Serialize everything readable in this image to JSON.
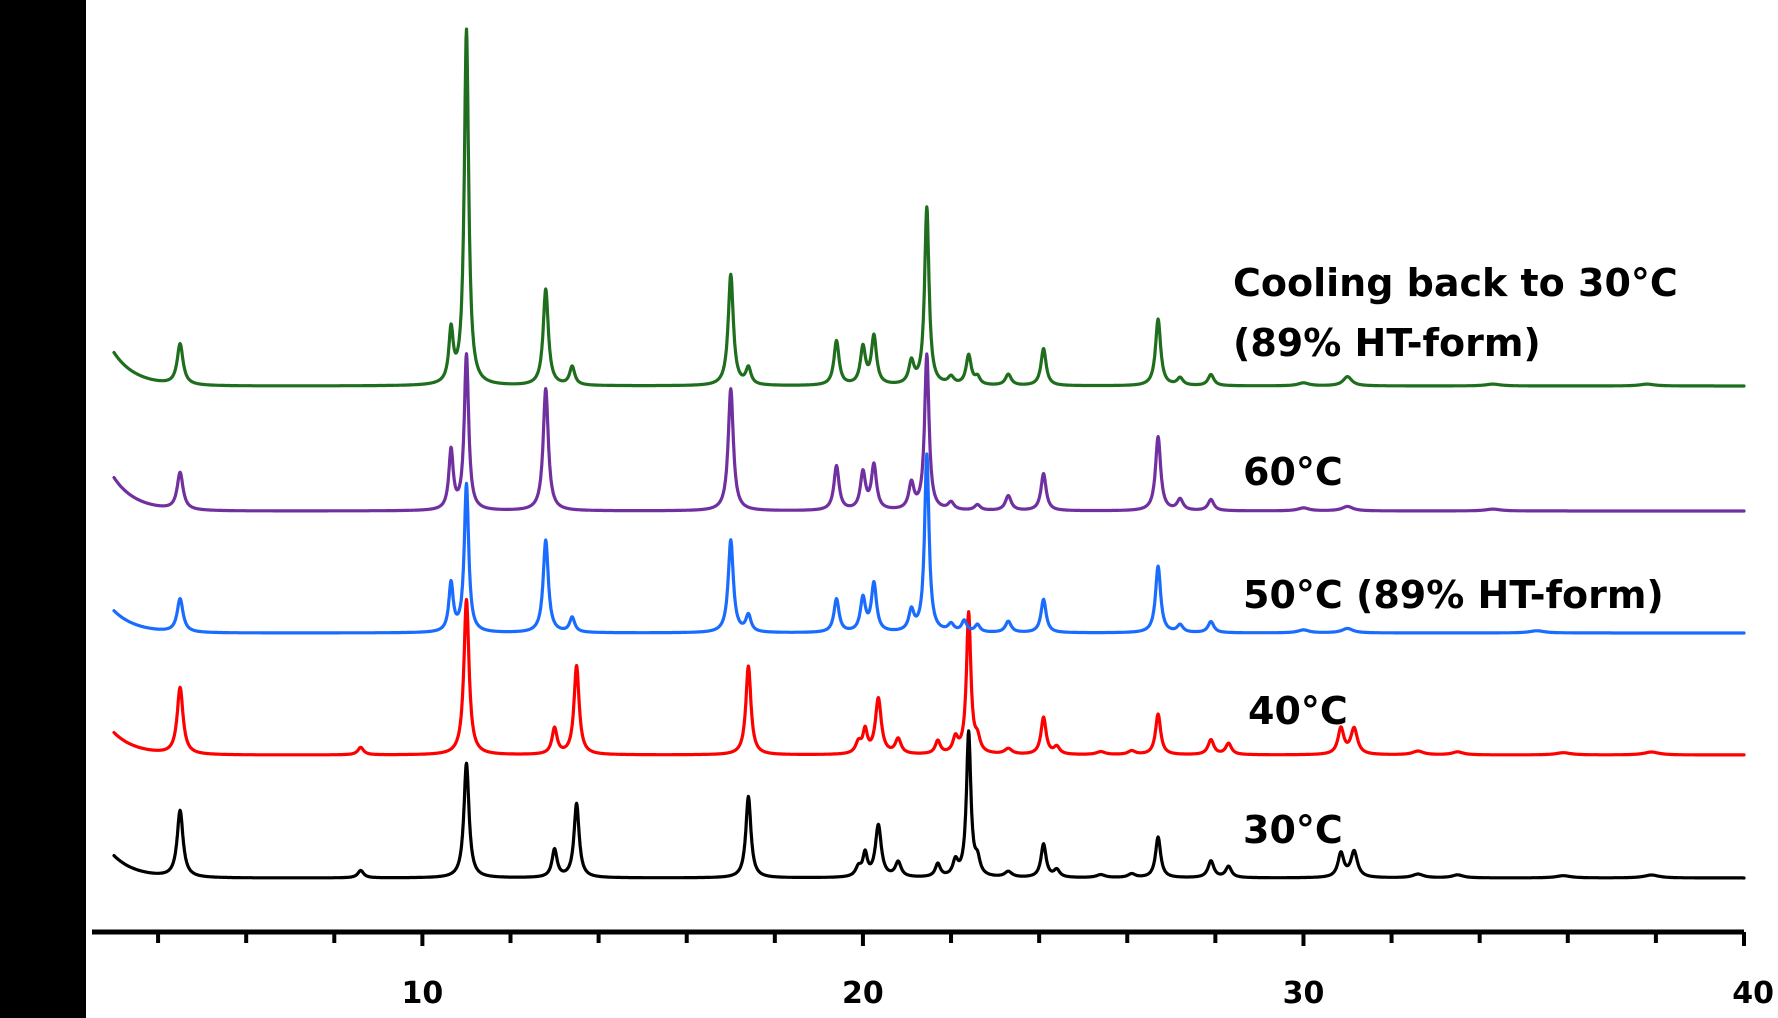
{
  "chart_data": {
    "type": "line",
    "title": "",
    "xlabel": "",
    "ylabel": "",
    "xlim": [
      2.5,
      40
    ],
    "x_ticks": [
      10,
      20,
      30,
      40
    ],
    "x_tick_labels": [
      "10",
      "20",
      "30",
      "40"
    ],
    "x_minor_step": 2,
    "y_axis": "line only, no tick labels",
    "grid": false,
    "legend": "none (series labelled directly to the right of each trace)",
    "series": [
      {
        "name": "30°C",
        "color": "#000000",
        "baseline": 0,
        "x_start": 3,
        "x_end": 40,
        "start_rise": 0.6,
        "peaks": [
          [
            4.5,
            1.8,
            0.08
          ],
          [
            8.6,
            0.2,
            0.08
          ],
          [
            11.0,
            3.1,
            0.07
          ],
          [
            13.0,
            0.75,
            0.07
          ],
          [
            13.5,
            2.0,
            0.07
          ],
          [
            17.4,
            2.2,
            0.07
          ],
          [
            19.9,
            0.25,
            0.08
          ],
          [
            20.05,
            0.6,
            0.06
          ],
          [
            20.35,
            1.4,
            0.08
          ],
          [
            20.8,
            0.4,
            0.08
          ],
          [
            21.7,
            0.35,
            0.07
          ],
          [
            22.1,
            0.4,
            0.07
          ],
          [
            22.4,
            3.9,
            0.06
          ],
          [
            22.6,
            0.4,
            0.07
          ],
          [
            23.3,
            0.15,
            0.1
          ],
          [
            24.1,
            0.9,
            0.07
          ],
          [
            24.4,
            0.2,
            0.08
          ],
          [
            25.4,
            0.08,
            0.12
          ],
          [
            26.1,
            0.1,
            0.1
          ],
          [
            26.7,
            1.1,
            0.07
          ],
          [
            27.9,
            0.45,
            0.08
          ],
          [
            28.3,
            0.3,
            0.08
          ],
          [
            30.85,
            0.65,
            0.08
          ],
          [
            31.15,
            0.7,
            0.09
          ],
          [
            32.6,
            0.1,
            0.15
          ],
          [
            33.5,
            0.08,
            0.15
          ],
          [
            35.9,
            0.06,
            0.2
          ],
          [
            37.9,
            0.08,
            0.2
          ]
        ]
      },
      {
        "name": "40°C",
        "color": "#ff0000",
        "baseline": 0,
        "x_start": 3,
        "x_end": 40,
        "start_rise": 0.6,
        "peaks": [
          [
            4.5,
            1.8,
            0.08
          ],
          [
            8.6,
            0.2,
            0.08
          ],
          [
            11.0,
            4.2,
            0.07
          ],
          [
            13.0,
            0.7,
            0.07
          ],
          [
            13.5,
            2.4,
            0.07
          ],
          [
            17.4,
            2.4,
            0.07
          ],
          [
            19.9,
            0.3,
            0.08
          ],
          [
            20.05,
            0.6,
            0.06
          ],
          [
            20.35,
            1.5,
            0.08
          ],
          [
            20.8,
            0.4,
            0.08
          ],
          [
            21.7,
            0.35,
            0.07
          ],
          [
            22.1,
            0.4,
            0.07
          ],
          [
            22.4,
            3.8,
            0.06
          ],
          [
            22.6,
            0.35,
            0.07
          ],
          [
            23.3,
            0.15,
            0.1
          ],
          [
            24.1,
            1.0,
            0.07
          ],
          [
            24.4,
            0.2,
            0.08
          ],
          [
            25.4,
            0.08,
            0.12
          ],
          [
            26.1,
            0.1,
            0.1
          ],
          [
            26.7,
            1.1,
            0.07
          ],
          [
            27.9,
            0.4,
            0.08
          ],
          [
            28.3,
            0.3,
            0.08
          ],
          [
            30.85,
            0.7,
            0.08
          ],
          [
            31.15,
            0.7,
            0.09
          ],
          [
            32.6,
            0.1,
            0.15
          ],
          [
            33.5,
            0.08,
            0.15
          ],
          [
            35.9,
            0.06,
            0.2
          ],
          [
            37.9,
            0.08,
            0.2
          ]
        ]
      },
      {
        "name": "50°C (89% HT-form)",
        "color": "#1a6cff",
        "baseline": 0,
        "x_start": 3,
        "x_end": 40,
        "start_rise": 0.6,
        "peaks": [
          [
            4.5,
            0.9,
            0.08
          ],
          [
            10.65,
            1.3,
            0.06
          ],
          [
            11.0,
            4.0,
            0.06
          ],
          [
            12.8,
            2.5,
            0.07
          ],
          [
            13.4,
            0.4,
            0.07
          ],
          [
            17.0,
            2.5,
            0.07
          ],
          [
            17.4,
            0.45,
            0.07
          ],
          [
            19.4,
            0.9,
            0.07
          ],
          [
            20.0,
            0.9,
            0.07
          ],
          [
            20.25,
            1.3,
            0.07
          ],
          [
            21.1,
            0.55,
            0.07
          ],
          [
            21.45,
            4.8,
            0.06
          ],
          [
            22.0,
            0.2,
            0.08
          ],
          [
            22.3,
            0.3,
            0.07
          ],
          [
            22.6,
            0.2,
            0.07
          ],
          [
            23.3,
            0.3,
            0.08
          ],
          [
            24.1,
            0.9,
            0.07
          ],
          [
            26.7,
            1.8,
            0.07
          ],
          [
            27.2,
            0.2,
            0.08
          ],
          [
            27.9,
            0.3,
            0.08
          ],
          [
            30.0,
            0.08,
            0.15
          ],
          [
            31.0,
            0.12,
            0.15
          ],
          [
            35.3,
            0.06,
            0.2
          ]
        ]
      },
      {
        "name": "60°C",
        "color": "#7030a0",
        "baseline": 0,
        "x_start": 3,
        "x_end": 40,
        "start_rise": 0.9,
        "peaks": [
          [
            4.5,
            1.0,
            0.08
          ],
          [
            10.65,
            1.6,
            0.06
          ],
          [
            11.0,
            4.2,
            0.06
          ],
          [
            12.8,
            3.3,
            0.07
          ],
          [
            17.0,
            3.3,
            0.07
          ],
          [
            19.4,
            1.2,
            0.07
          ],
          [
            20.0,
            1.0,
            0.07
          ],
          [
            20.25,
            1.2,
            0.07
          ],
          [
            21.1,
            0.7,
            0.07
          ],
          [
            21.45,
            4.2,
            0.06
          ],
          [
            22.0,
            0.2,
            0.08
          ],
          [
            22.6,
            0.15,
            0.08
          ],
          [
            23.3,
            0.4,
            0.08
          ],
          [
            24.1,
            1.0,
            0.07
          ],
          [
            26.7,
            2.0,
            0.07
          ],
          [
            27.2,
            0.3,
            0.08
          ],
          [
            27.9,
            0.3,
            0.08
          ],
          [
            30.0,
            0.08,
            0.15
          ],
          [
            31.0,
            0.12,
            0.15
          ],
          [
            34.3,
            0.05,
            0.2
          ]
        ]
      },
      {
        "name": "Cooling back to 30°C",
        "subtitle": "(89% HT-form)",
        "color": "#1e6e1e",
        "baseline": 0,
        "x_start": 3,
        "x_end": 40,
        "start_rise": 0.9,
        "peaks": [
          [
            4.5,
            1.1,
            0.08
          ],
          [
            10.65,
            1.4,
            0.06
          ],
          [
            11.0,
            9.6,
            0.06
          ],
          [
            12.8,
            2.6,
            0.07
          ],
          [
            13.4,
            0.5,
            0.07
          ],
          [
            17.0,
            3.0,
            0.07
          ],
          [
            17.4,
            0.45,
            0.07
          ],
          [
            19.4,
            1.2,
            0.07
          ],
          [
            20.0,
            1.0,
            0.07
          ],
          [
            20.25,
            1.3,
            0.07
          ],
          [
            21.1,
            0.6,
            0.07
          ],
          [
            21.45,
            4.8,
            0.06
          ],
          [
            22.0,
            0.2,
            0.08
          ],
          [
            22.4,
            0.8,
            0.07
          ],
          [
            22.6,
            0.2,
            0.07
          ],
          [
            23.3,
            0.3,
            0.08
          ],
          [
            24.1,
            1.0,
            0.07
          ],
          [
            26.7,
            1.8,
            0.07
          ],
          [
            27.2,
            0.2,
            0.08
          ],
          [
            27.9,
            0.3,
            0.08
          ],
          [
            30.0,
            0.08,
            0.15
          ],
          [
            31.0,
            0.25,
            0.12
          ],
          [
            34.3,
            0.05,
            0.2
          ],
          [
            37.8,
            0.05,
            0.2
          ]
        ]
      }
    ]
  }
}
